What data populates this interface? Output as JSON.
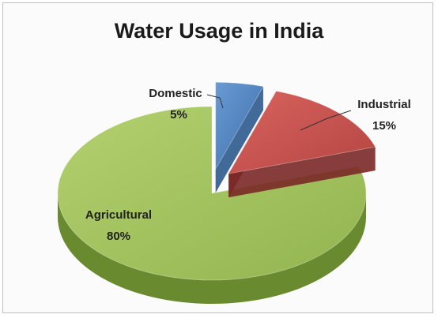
{
  "chart_data": {
    "type": "pie",
    "title": "Water Usage in India",
    "categories": [
      "Domestic",
      "Industrial",
      "Agricultural"
    ],
    "values": [
      5,
      15,
      80
    ],
    "value_labels": [
      "5%",
      "15%",
      "80%"
    ],
    "colors": [
      "#4f81bd",
      "#c0504d",
      "#9bbb59"
    ],
    "style": "3d exploded pie",
    "legend": "none"
  }
}
